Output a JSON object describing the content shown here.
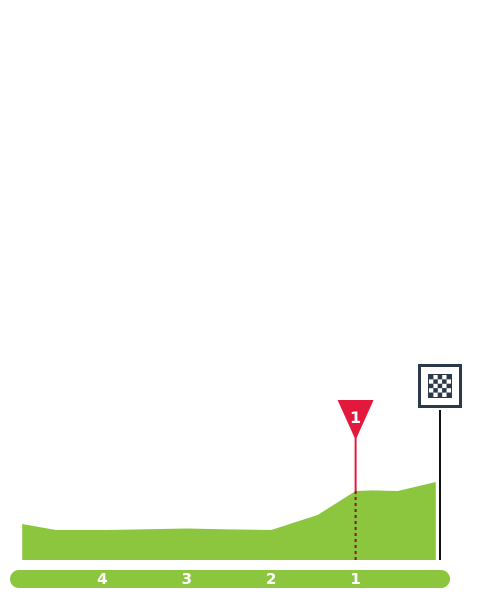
{
  "colors": {
    "terrain": "#8cc63f",
    "distance_bar": "#8cc63f",
    "km_text": "#ffffff",
    "marker": "#e2183d",
    "marker_dash": "#7a1a2e",
    "finish_pole": "#111111",
    "finish_flag_border": "#2b3a4a",
    "finish_flag_fill": "#ffffff"
  },
  "icons": {
    "finish": "checkered-flag-icon",
    "km_marker": "red-triangle-marker-icon"
  },
  "chart_data": {
    "type": "area",
    "title": "",
    "xlabel": "",
    "ylabel": "",
    "x_unit": "km to finish",
    "x_ticks": [
      "4",
      "3",
      "2",
      "1"
    ],
    "x_tick_values": [
      4,
      3,
      2,
      1
    ],
    "xlim": [
      5,
      0
    ],
    "grid": false,
    "legend": "none",
    "series": [
      {
        "x": [
          4.95,
          4.55,
          3.95,
          3.0,
          2.5,
          2.0,
          1.45,
          1.0,
          0.8,
          0.5,
          0.05
        ],
        "y": [
          12,
          10,
          10,
          10.5,
          10.2,
          10,
          15,
          23,
          23.2,
          23,
          26
        ]
      }
    ],
    "ylim": [
      0,
      30
    ],
    "markers": [
      {
        "label": "1",
        "x": 1.0
      }
    ],
    "finish": {
      "x": 0.0
    }
  }
}
